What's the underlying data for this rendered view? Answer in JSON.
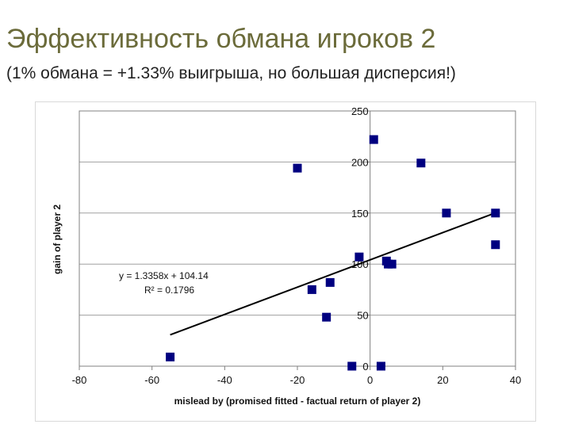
{
  "slide": {
    "title": "Эффективность обмана игроков 2",
    "subtitle": "(1% обмана = +1.33% выигрыша, но большая дисперсия!)"
  },
  "chart_data": {
    "type": "scatter",
    "title": "",
    "xlabel": "mislead by (promised fitted - factual return of player 2)",
    "ylabel": "gain of player 2",
    "xlim": [
      -80,
      40
    ],
    "ylim": [
      0,
      250
    ],
    "x_ticks": [
      -80,
      -60,
      -40,
      -20,
      0,
      20,
      40
    ],
    "y_ticks": [
      0,
      50,
      100,
      150,
      200,
      250
    ],
    "grid": "horizontal",
    "y_axis_position": "x=0",
    "marker": "square",
    "marker_color": "#000080",
    "line_color": "#000000",
    "points": [
      {
        "x": -55,
        "y": 9
      },
      {
        "x": -20,
        "y": 194
      },
      {
        "x": -16,
        "y": 75
      },
      {
        "x": -12,
        "y": 48
      },
      {
        "x": -11,
        "y": 82
      },
      {
        "x": -5,
        "y": 0
      },
      {
        "x": -3,
        "y": 107
      },
      {
        "x": 1,
        "y": 222
      },
      {
        "x": 3,
        "y": 0
      },
      {
        "x": 4.5,
        "y": 103
      },
      {
        "x": 5,
        "y": 100
      },
      {
        "x": 6,
        "y": 100
      },
      {
        "x": 14,
        "y": 199
      },
      {
        "x": 21,
        "y": 150
      },
      {
        "x": 34.5,
        "y": 150
      },
      {
        "x": 34.5,
        "y": 119
      }
    ],
    "trendline": {
      "slope": 1.3358,
      "intercept": 104.14,
      "x_range": [
        -55,
        35
      ],
      "equation": "y = 1.3358x + 104.14",
      "r_squared": "R² = 0.1796"
    }
  }
}
